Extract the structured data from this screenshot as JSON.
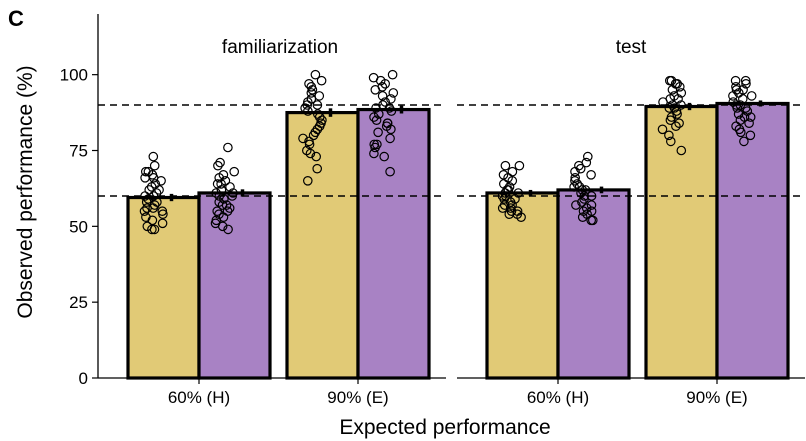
{
  "chart_data": {
    "type": "bar",
    "panel_label": "C",
    "xlabel": "Expected performance",
    "ylabel": "Observed performance (%)",
    "ylim": [
      0,
      120
    ],
    "yticks": [
      0,
      25,
      50,
      75,
      100
    ],
    "categories": [
      "60% (H)",
      "90% (E)"
    ],
    "reference_lines": [
      60,
      90
    ],
    "grid": false,
    "legend": "none",
    "colors": {
      "series_1": "#e1ca76",
      "series_2": "#a882c4"
    },
    "panels": [
      {
        "title": "familiarization",
        "series": [
          {
            "values": [
              59.5,
              87.5
            ],
            "errors": [
              1.2,
              1.4
            ],
            "points": [
              [
                73,
                70,
                68,
                68,
                67,
                66,
                66,
                65,
                64,
                63,
                62,
                62,
                61,
                60,
                60,
                59,
                58,
                58,
                57,
                56,
                56,
                55,
                55,
                54,
                53,
                52,
                51,
                50,
                49,
                49
              ],
              [
                100,
                98,
                97,
                96,
                95,
                94,
                93,
                92,
                92,
                91,
                90,
                90,
                89,
                88,
                87,
                86,
                85,
                84,
                83,
                82,
                81,
                80,
                79,
                78,
                77,
                75,
                74,
                73,
                69,
                65
              ]
            ]
          },
          {
            "values": [
              61,
              88.5
            ],
            "errors": [
              1.2,
              1.3
            ],
            "points": [
              [
                76,
                71,
                70,
                68,
                67,
                66,
                65,
                64,
                64,
                63,
                62,
                62,
                61,
                61,
                60,
                60,
                59,
                58,
                57,
                57,
                56,
                55,
                55,
                54,
                53,
                52,
                51,
                50,
                49
              ],
              [
                100,
                99,
                98,
                97,
                96,
                95,
                94,
                93,
                92,
                91,
                90,
                89,
                89,
                88,
                87,
                86,
                85,
                84,
                84,
                83,
                82,
                81,
                79,
                77,
                77,
                76,
                74,
                73,
                68
              ]
            ]
          }
        ]
      },
      {
        "title": "test",
        "series": [
          {
            "values": [
              61,
              89.5
            ],
            "errors": [
              1.0,
              1.2
            ],
            "points": [
              [
                70,
                70,
                68,
                67,
                66,
                65,
                64,
                63,
                62,
                62,
                61,
                61,
                60,
                60,
                59,
                59,
                58,
                57,
                57,
                56,
                56,
                55,
                55,
                54,
                54,
                53
              ],
              [
                98,
                98,
                97,
                97,
                96,
                95,
                94,
                93,
                92,
                92,
                91,
                90,
                90,
                89,
                89,
                88,
                87,
                86,
                85,
                84,
                83,
                82,
                80,
                78,
                75
              ]
            ]
          },
          {
            "values": [
              62,
              90.5
            ],
            "errors": [
              1.1,
              1.0
            ],
            "points": [
              [
                73,
                71,
                70,
                69,
                68,
                67,
                66,
                65,
                64,
                63,
                63,
                62,
                62,
                61,
                60,
                60,
                59,
                58,
                57,
                57,
                56,
                55,
                55,
                54,
                53,
                52,
                52
              ],
              [
                98,
                98,
                97,
                96,
                95,
                95,
                94,
                93,
                93,
                92,
                91,
                90,
                90,
                89,
                89,
                88,
                87,
                86,
                86,
                85,
                84,
                83,
                82,
                81,
                80,
                78
              ]
            ]
          }
        ]
      }
    ]
  }
}
